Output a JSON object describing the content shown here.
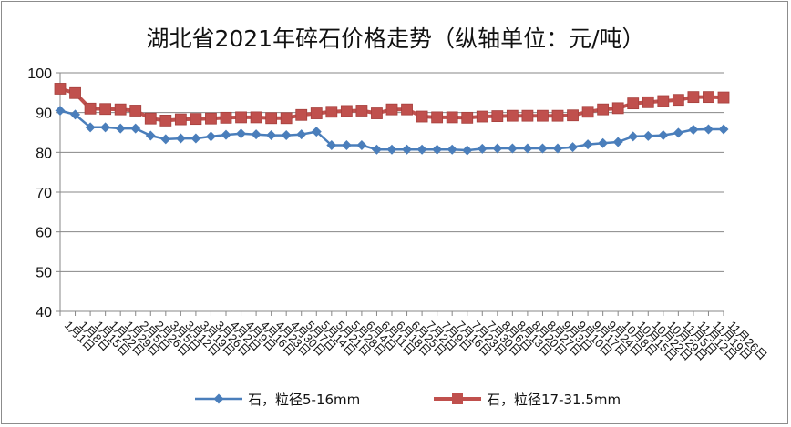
{
  "chart_data": {
    "type": "line",
    "title": "湖北省2021年碎石价格走势（纵轴单位：元/吨）",
    "xlabel": "",
    "ylabel": "",
    "ylim": [
      40,
      100
    ],
    "yticks": [
      40,
      50,
      60,
      70,
      80,
      90,
      100
    ],
    "grid": "horizontal",
    "legend_position": "bottom",
    "categories": [
      "1月1日",
      "1月8日",
      "1月15日",
      "1月22日",
      "1月29日",
      "2月5日",
      "2月26日",
      "3月5日",
      "3月12日",
      "3月19日",
      "3月26日",
      "4月2日",
      "4月9日",
      "4月16日",
      "4月23日",
      "4月30日",
      "5月7日",
      "5月14日",
      "5月21日",
      "5月28日",
      "6月4日",
      "6月11日",
      "6月18日",
      "6月25日",
      "7月2日",
      "7月9日",
      "7月16日",
      "7月23日",
      "7月30日",
      "8月6日",
      "8月13日",
      "8月20日",
      "8月27日",
      "9月3日",
      "9月10日",
      "9月17日",
      "9月24日",
      "10月8日",
      "10月15日",
      "10月22日",
      "10月29日",
      "11月5日",
      "11月12日",
      "11月19日",
      "11月26日"
    ],
    "series": [
      {
        "name": "石，粒径5-16mm",
        "color": "#4a7ebb",
        "marker": "diamond",
        "values": [
          90.5,
          89.5,
          86.3,
          86.3,
          86.0,
          86.0,
          84.2,
          83.3,
          83.5,
          83.5,
          84.0,
          84.4,
          84.7,
          84.5,
          84.3,
          84.3,
          84.5,
          85.2,
          81.8,
          81.8,
          81.8,
          80.7,
          80.7,
          80.7,
          80.7,
          80.7,
          80.7,
          80.5,
          80.9,
          81.0,
          81.0,
          81.0,
          81.0,
          81.0,
          81.3,
          82.0,
          82.3,
          82.6,
          84.0,
          84.1,
          84.3,
          84.9,
          85.7,
          85.8,
          85.8
        ]
      },
      {
        "name": "石，粒径17-31.5mm",
        "color": "#c0504d",
        "marker": "square",
        "values": [
          96.0,
          94.9,
          91.0,
          90.9,
          90.8,
          90.5,
          88.5,
          88.0,
          88.3,
          88.4,
          88.5,
          88.7,
          88.8,
          88.8,
          88.6,
          88.6,
          89.4,
          89.8,
          90.2,
          90.4,
          90.5,
          89.8,
          90.8,
          90.8,
          89.0,
          88.8,
          88.8,
          88.7,
          89.0,
          89.1,
          89.2,
          89.2,
          89.2,
          89.2,
          89.3,
          90.2,
          90.8,
          91.1,
          92.3,
          92.6,
          92.9,
          93.2,
          93.9,
          93.9,
          93.8
        ]
      }
    ]
  }
}
